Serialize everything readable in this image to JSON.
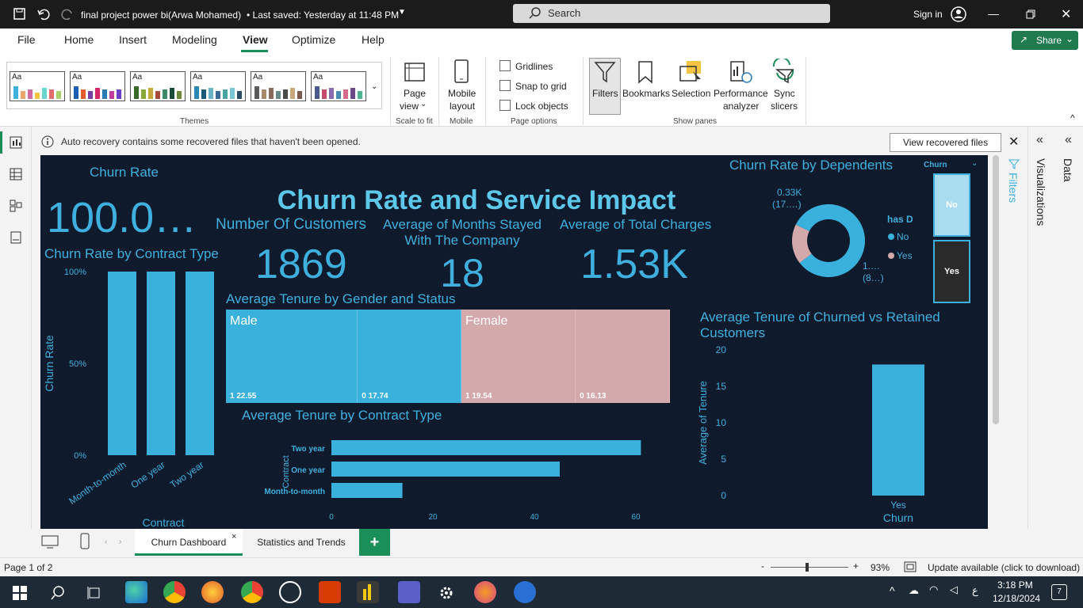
{
  "titlebar": {
    "file_title": "final project power bi(Arwa Mohamed)",
    "saved": "• Last saved: Yesterday at 11:48 PM",
    "search": "Search",
    "sign_in": "Sign in"
  },
  "menu": {
    "items": [
      "File",
      "Home",
      "Insert",
      "Modeling",
      "View",
      "Optimize",
      "Help"
    ],
    "active": "View",
    "share": "Share"
  },
  "ribbon": {
    "themes_label": "Themes",
    "theme_aa": "Aa",
    "page_view": "Page",
    "page_view2": "view",
    "scale_to_fit": "Scale to fit",
    "mobile": "Mobile",
    "mobile2": "layout",
    "mobile_group": "Mobile",
    "gridlines": "Gridlines",
    "snap": "Snap to grid",
    "lock": "Lock objects",
    "page_options": "Page options",
    "filters": "Filters",
    "bookmarks": "Bookmarks",
    "selection": "Selection",
    "performance": "Performance",
    "performance2": "analyzer",
    "sync": "Sync",
    "sync2": "slicers",
    "show_panes": "Show panes"
  },
  "notice": {
    "message": "Auto recovery contains some recovered files that haven't been opened.",
    "button": "View recovered files"
  },
  "panes": {
    "filters": "Filters",
    "visualizations": "Visualizations",
    "data": "Data"
  },
  "dashboard": {
    "title": "Churn Rate and Service Impact",
    "churn_rate_label": "Churn Rate",
    "churn_rate_value": "100.0…",
    "customers_label": "Number Of Customers",
    "customers_value": "1869",
    "months_label_1": "Average of Months Stayed",
    "months_label_2": "With The Company",
    "months_value": "18",
    "charges_label": "Average of Total Charges",
    "charges_value": "1.53K",
    "dependents_title": "Churn Rate by Dependents",
    "slicer_title": "Churn",
    "slicer_no": "No",
    "slicer_yes": "Yes",
    "contract_title": "Churn Rate by Contract Type",
    "gender_title": "Average Tenure by Gender and Status",
    "tenure_contract_title": "Average Tenure by Contract Type",
    "churned_title_1": "Average Tenure of Churned vs Retained",
    "churned_title_2": "Customers"
  },
  "chart_data": [
    {
      "type": "bar",
      "title": "Churn Rate by Contract Type",
      "xlabel": "Contract",
      "ylabel": "Churn Rate",
      "categories": [
        "Month-to-month",
        "One year",
        "Two year"
      ],
      "values": [
        100,
        100,
        100
      ],
      "y_ticks": [
        "100%",
        "50%",
        "0%"
      ],
      "ylim": [
        0,
        100
      ]
    },
    {
      "type": "pie",
      "title": "Churn Rate by Dependents",
      "legend_title": "has Depe…",
      "legend": [
        "No",
        "Yes"
      ],
      "slices": [
        {
          "name": "No",
          "value": 1530,
          "label_1": "1.…",
          "label_2": "(8…)"
        },
        {
          "name": "Yes",
          "value": 330,
          "label_1": "0.33K",
          "label_2": "(17.…)"
        }
      ],
      "colors": [
        "#3ab0dc",
        "#d4a9ab"
      ]
    },
    {
      "type": "heatmap",
      "title": "Average Tenure by Gender and Status",
      "groups": [
        {
          "name": "Male",
          "cells": [
            {
              "status": "1",
              "value": 22.55,
              "label": "1 22.55"
            },
            {
              "status": "0",
              "value": 17.74,
              "label": "0 17.74"
            }
          ]
        },
        {
          "name": "Female",
          "cells": [
            {
              "status": "1",
              "value": 19.54,
              "label": "1 19.54"
            },
            {
              "status": "0",
              "value": 16.13,
              "label": "0 16.13"
            }
          ]
        }
      ]
    },
    {
      "type": "bar",
      "orientation": "horizontal",
      "title": "Average Tenure by Contract Type",
      "ylabel": "Contract",
      "categories": [
        "Two year",
        "One year",
        "Month-to-month"
      ],
      "values": [
        61,
        45,
        14
      ],
      "x_ticks": [
        "0",
        "20",
        "40",
        "60"
      ],
      "xlim": [
        0,
        65
      ]
    },
    {
      "type": "bar",
      "title": "Average Tenure of Churned vs Retained Customers",
      "xlabel": "Churn",
      "ylabel": "Average of Tenure",
      "categories": [
        "Yes"
      ],
      "values": [
        18
      ],
      "y_ticks": [
        "20",
        "15",
        "10",
        "5",
        "0"
      ],
      "ylim": [
        0,
        20
      ]
    }
  ],
  "tabs": {
    "items": [
      "Churn Dashboard",
      "Statistics and Trends"
    ],
    "add": "+"
  },
  "status": {
    "page": "Page 1 of 2",
    "zoom": "93%",
    "update": "Update available (click to download)",
    "minus": "-",
    "plus": "+"
  },
  "taskbar": {
    "time": "3:18 PM",
    "date": "12/18/2024",
    "lang": "ع",
    "notif": "7"
  }
}
